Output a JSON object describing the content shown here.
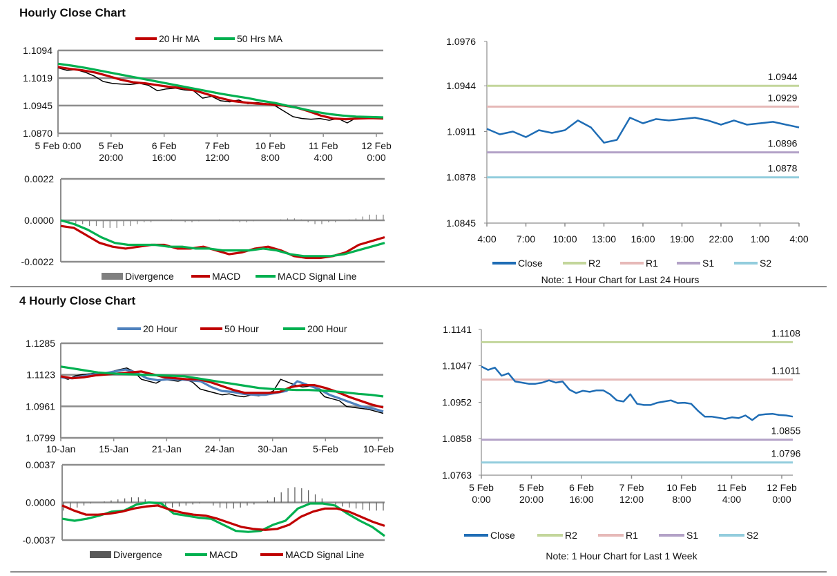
{
  "sections": [
    {
      "title": "Hourly Close Chart"
    },
    {
      "title": "4 Hourly Close Chart"
    }
  ],
  "colors": {
    "ma_red": "#c00000",
    "ma_green": "#00b050",
    "ma_blue": "#4f81bd",
    "close_blue": "#1f6db5",
    "close_black": "#000000",
    "divergence": "#808080",
    "r2": "#c3d69b",
    "r1": "#e6b9b8",
    "s1": "#b3a2c7",
    "s2": "#93cddd",
    "grid": "#8c8c8c"
  },
  "chart_data": [
    {
      "type": "line",
      "title": "",
      "ylim": [
        1.087,
        1.1094
      ],
      "yticks": [
        "1.1094",
        "1.1019",
        "1.0945",
        "1.0870"
      ],
      "xticks": [
        [
          "5 Feb 0:00"
        ],
        [
          "5 Feb",
          "20:00"
        ],
        [
          "6 Feb",
          "16:00"
        ],
        [
          "7 Feb",
          "12:00"
        ],
        [
          "10 Feb",
          "8:00"
        ],
        [
          "11 Feb",
          "4:00"
        ],
        [
          "12 Feb",
          "0:00"
        ]
      ],
      "grid": true,
      "legend": "top",
      "series": [
        {
          "color": "#000000",
          "values": [
            1.1047,
            1.104,
            1.1042,
            1.1035,
            1.1025,
            1.101,
            1.1005,
            1.1003,
            1.1002,
            1.1005,
            1.1,
            1.0985,
            1.099,
            1.0992,
            1.0987,
            1.0985,
            1.0965,
            1.097,
            1.0958,
            1.0955,
            1.096,
            1.095,
            1.0953,
            1.095,
            1.0945,
            1.093,
            1.0915,
            1.091,
            1.0908,
            1.091,
            1.0905,
            1.091,
            1.0898,
            1.0912,
            1.0913,
            1.0912,
            1.0913
          ]
        },
        {
          "name": "20 Hr MA",
          "color": "#c00000",
          "values": [
            1.1049,
            1.1044,
            1.104,
            1.1034,
            1.1025,
            1.1015,
            1.1008,
            1.1005,
            1.1,
            1.0995,
            1.0992,
            1.0985,
            1.0975,
            1.0965,
            1.0957,
            1.0953,
            1.095,
            1.0948,
            1.0945,
            1.094,
            1.093,
            1.0918,
            1.091,
            1.0908,
            1.091,
            1.0911,
            1.091
          ]
        },
        {
          "name": "50 Hrs MA",
          "color": "#00b050",
          "values": [
            1.1058,
            1.1053,
            1.1047,
            1.104,
            1.1033,
            1.1026,
            1.1019,
            1.1012,
            1.1005,
            1.0998,
            1.0991,
            1.0984,
            1.0977,
            1.0971,
            1.0965,
            1.0958,
            1.0952,
            1.0944,
            1.0936,
            1.0928,
            1.0922,
            1.0918,
            1.0915,
            1.0914,
            1.0913
          ]
        }
      ]
    },
    {
      "type": "line",
      "title": "",
      "ylim": [
        -0.0022,
        0.0022
      ],
      "yticks": [
        "0.0022",
        "0.0000",
        "-0.0022"
      ],
      "grid": true,
      "legend": "bottom",
      "divergence": {
        "name": "Divergence",
        "color": "#808080",
        "values": [
          0,
          -0.0001,
          -0.0002,
          -0.0002,
          -0.0003,
          -0.0003,
          -0.0004,
          -0.0004,
          -0.0004,
          -0.0003,
          -0.0003,
          -0.0002,
          -0.0001,
          -0.0001,
          0,
          0,
          5e-05,
          0,
          -0.0001,
          -0.0001,
          -5e-05,
          0,
          0,
          5e-05,
          0,
          -5e-05,
          -0.0001,
          -0.0001,
          -5e-05,
          0,
          0,
          0,
          5e-05,
          0.0001,
          0.0001,
          5e-05,
          -0.0001,
          -0.0002,
          -0.0002,
          -0.0001,
          -0.0001,
          0,
          5e-05,
          0.0001,
          0.0002,
          0.0003,
          0.0003,
          0.0003
        ]
      },
      "series": [
        {
          "name": "MACD",
          "color": "#c00000",
          "values": [
            -0.0003,
            -0.0004,
            -0.0008,
            -0.0012,
            -0.0014,
            -0.0015,
            -0.0014,
            -0.0013,
            -0.0013,
            -0.0015,
            -0.0015,
            -0.0014,
            -0.0016,
            -0.0018,
            -0.0017,
            -0.0015,
            -0.0014,
            -0.0016,
            -0.0019,
            -0.002,
            -0.002,
            -0.0019,
            -0.0017,
            -0.0013,
            -0.0011,
            -0.0009
          ]
        },
        {
          "name": "MACD Signal Line",
          "color": "#00b050",
          "values": [
            0,
            -0.0002,
            -0.0005,
            -0.0009,
            -0.0012,
            -0.0013,
            -0.0013,
            -0.0013,
            -0.0014,
            -0.0014,
            -0.0015,
            -0.0015,
            -0.0016,
            -0.0016,
            -0.0016,
            -0.0015,
            -0.0016,
            -0.0018,
            -0.0019,
            -0.0019,
            -0.0019,
            -0.0018,
            -0.0016,
            -0.0014,
            -0.0012
          ]
        }
      ]
    },
    {
      "type": "line",
      "title": "",
      "ylim": [
        1.0845,
        1.0976
      ],
      "yticks": [
        "1.0976",
        "1.0944",
        "1.0911",
        "1.0878",
        "1.0845"
      ],
      "xticks": [
        [
          "4:00"
        ],
        [
          "7:00"
        ],
        [
          "10:00"
        ],
        [
          "13:00"
        ],
        [
          "16:00"
        ],
        [
          "19:00"
        ],
        [
          "22:00"
        ],
        [
          "1:00"
        ],
        [
          "4:00"
        ]
      ],
      "grid": false,
      "legend": "bottom",
      "note": "Note: 1 Hour Chart for Last 24 Hours",
      "series": [
        {
          "name": "Close",
          "color": "#1f6db5",
          "values": [
            1.0913,
            1.0909,
            1.0911,
            1.0907,
            1.0912,
            1.091,
            1.0912,
            1.0919,
            1.0914,
            1.0903,
            1.0905,
            1.0921,
            1.0917,
            1.092,
            1.0919,
            1.092,
            1.0921,
            1.0919,
            1.0916,
            1.0919,
            1.0916,
            1.0917,
            1.0918,
            1.0916,
            1.0914
          ]
        }
      ],
      "levels": [
        {
          "name": "R2",
          "value": 1.0944,
          "label": "1.0944",
          "color": "#c3d69b"
        },
        {
          "name": "R1",
          "value": 1.0929,
          "label": "1.0929",
          "color": "#e6b9b8"
        },
        {
          "name": "S1",
          "value": 1.0896,
          "label": "1.0896",
          "color": "#b3a2c7"
        },
        {
          "name": "S2",
          "value": 1.0878,
          "label": "1.0878",
          "color": "#93cddd"
        }
      ]
    },
    {
      "type": "line",
      "title": "",
      "ylim": [
        1.0799,
        1.1285
      ],
      "yticks": [
        "1.1285",
        "1.1123",
        "1.0961",
        "1.0799"
      ],
      "xticks": [
        [
          "10-Jan"
        ],
        [
          "15-Jan"
        ],
        [
          "21-Jan"
        ],
        [
          "24-Jan"
        ],
        [
          "30-Jan"
        ],
        [
          "5-Feb"
        ],
        [
          "10-Feb"
        ]
      ],
      "grid": true,
      "legend": "top",
      "series": [
        {
          "color": "#000000",
          "values": [
            1.111,
            1.11,
            1.1118,
            1.1125,
            1.1128,
            1.1135,
            1.1125,
            1.114,
            1.115,
            1.1158,
            1.114,
            1.11,
            1.109,
            1.108,
            1.11,
            1.1095,
            1.109,
            1.11,
            1.1085,
            1.105,
            1.104,
            1.103,
            1.102,
            1.1025,
            1.1015,
            1.101,
            1.102,
            1.1015,
            1.1025,
            1.104,
            1.11,
            1.1085,
            1.107,
            1.106,
            1.1065,
            1.105,
            1.101,
            1.1,
            1.099,
            1.096,
            1.0955,
            1.095,
            1.0945,
            1.0935,
            1.0925
          ]
        },
        {
          "name": "20 Hour",
          "color": "#4f81bd",
          "values": [
            1.111,
            1.1105,
            1.1115,
            1.1125,
            1.113,
            1.114,
            1.115,
            1.1135,
            1.1105,
            1.1095,
            1.11,
            1.11,
            1.1095,
            1.109,
            1.106,
            1.104,
            1.1035,
            1.1025,
            1.102,
            1.102,
            1.103,
            1.104,
            1.109,
            1.107,
            1.105,
            1.102,
            1.1,
            1.098,
            1.096,
            1.095,
            1.0935
          ]
        },
        {
          "name": "50 Hour",
          "color": "#c00000",
          "values": [
            1.1115,
            1.1105,
            1.111,
            1.112,
            1.1125,
            1.113,
            1.1135,
            1.114,
            1.1125,
            1.111,
            1.1105,
            1.11,
            1.11,
            1.1085,
            1.1065,
            1.1045,
            1.103,
            1.103,
            1.103,
            1.1035,
            1.106,
            1.107,
            1.107,
            1.1055,
            1.1035,
            1.101,
            1.099,
            1.097,
            1.0955
          ]
        },
        {
          "name": "200 Hour",
          "color": "#00b050",
          "values": [
            1.1165,
            1.1155,
            1.1145,
            1.1135,
            1.113,
            1.1127,
            1.1125,
            1.1122,
            1.112,
            1.1118,
            1.1115,
            1.1105,
            1.1095,
            1.1085,
            1.1075,
            1.1065,
            1.1055,
            1.105,
            1.1048,
            1.1045,
            1.1045,
            1.1042,
            1.1038,
            1.1032,
            1.1025,
            1.102,
            1.1012
          ]
        }
      ]
    },
    {
      "type": "line",
      "title": "",
      "ylim": [
        -0.0037,
        0.0037
      ],
      "yticks": [
        "0.0037",
        "0.0000",
        "-0.0037"
      ],
      "grid": true,
      "legend": "bottom",
      "divergence": {
        "name": "Divergence",
        "color": "#595959",
        "values": [
          -0.0008,
          -0.0007,
          -0.0005,
          -0.0003,
          -0.0001,
          0,
          0.0001,
          0.0002,
          0.0003,
          0.0004,
          0.0005,
          0.0005,
          0.0003,
          0,
          -0.0003,
          -0.0005,
          -0.0005,
          -0.0004,
          -0.0003,
          -0.0002,
          -0.0001,
          0,
          -0.0003,
          -0.0005,
          -0.0006,
          -0.0006,
          -0.0005,
          -0.0003,
          -0.0002,
          0,
          0.0002,
          0.0005,
          0.001,
          0.0014,
          0.0015,
          0.0014,
          0.0012,
          0.0008,
          0.0004,
          0,
          -0.0002,
          -0.0004,
          -0.0005,
          -0.0006,
          -0.0007,
          -0.0008,
          -0.0008,
          -0.0008
        ]
      },
      "series": [
        {
          "name": "MACD",
          "color": "#00b050",
          "values": [
            -0.0016,
            -0.0018,
            -0.0016,
            -0.0013,
            -0.0009,
            -0.0008,
            -0.0002,
            0,
            -0.0001,
            -0.0011,
            -0.0013,
            -0.0015,
            -0.0016,
            -0.0022,
            -0.0028,
            -0.0029,
            -0.0028,
            -0.0022,
            -0.0018,
            -0.0006,
            -0.0001,
            -0.0001,
            -0.0003,
            -0.0011,
            -0.0018,
            -0.0024,
            -0.0033
          ]
        },
        {
          "name": "MACD Signal Line",
          "color": "#c00000",
          "values": [
            -0.0003,
            -0.0008,
            -0.0012,
            -0.0012,
            -0.0011,
            -0.0009,
            -0.0006,
            -0.0004,
            -0.0003,
            -0.0007,
            -0.001,
            -0.0012,
            -0.0013,
            -0.0016,
            -0.002,
            -0.0024,
            -0.0026,
            -0.0027,
            -0.0026,
            -0.0022,
            -0.0014,
            -0.0009,
            -0.0006,
            -0.0006,
            -0.0009,
            -0.0014,
            -0.0019,
            -0.0023
          ]
        }
      ]
    },
    {
      "type": "line",
      "title": "",
      "ylim": [
        1.0763,
        1.1141
      ],
      "yticks": [
        "1.1141",
        "1.1047",
        "1.0952",
        "1.0858",
        "1.0763"
      ],
      "xticks": [
        [
          "5 Feb",
          "0:00"
        ],
        [
          "5 Feb",
          "20:00"
        ],
        [
          "6 Feb",
          "16:00"
        ],
        [
          "7 Feb",
          "12:00"
        ],
        [
          "10 Feb",
          "8:00"
        ],
        [
          "11 Feb",
          "4:00"
        ],
        [
          "12 Feb",
          "0:00"
        ]
      ],
      "grid": false,
      "legend": "bottom",
      "note": "Note: 1 Hour Chart for Last 1 Week",
      "series": [
        {
          "name": "Close",
          "color": "#1f6db5",
          "values": [
            1.1045,
            1.1036,
            1.1042,
            1.1021,
            1.1027,
            1.1006,
            1.1003,
            1.1,
            1.1,
            1.1003,
            1.1009,
            1.1003,
            1.1006,
            1.0985,
            1.0976,
            1.0982,
            1.0979,
            1.0983,
            1.0983,
            1.0973,
            1.0957,
            1.0954,
            1.0973,
            1.0948,
            1.0945,
            1.0945,
            1.0951,
            1.0954,
            1.0957,
            1.095,
            1.0951,
            1.0948,
            1.093,
            1.0915,
            1.0915,
            1.0912,
            1.0909,
            1.0913,
            1.0911,
            1.0918,
            1.0906,
            1.0919,
            1.0921,
            1.0922,
            1.0919,
            1.0918,
            1.0915
          ]
        }
      ],
      "levels": [
        {
          "name": "R2",
          "value": 1.1108,
          "label": "1.1108",
          "color": "#c3d69b"
        },
        {
          "name": "R1",
          "value": 1.1011,
          "label": "1.1011",
          "color": "#e6b9b8"
        },
        {
          "name": "S1",
          "value": 1.0855,
          "label": "1.0855",
          "color": "#b3a2c7"
        },
        {
          "name": "S2",
          "value": 1.0796,
          "label": "1.0796",
          "color": "#93cddd"
        }
      ]
    }
  ]
}
